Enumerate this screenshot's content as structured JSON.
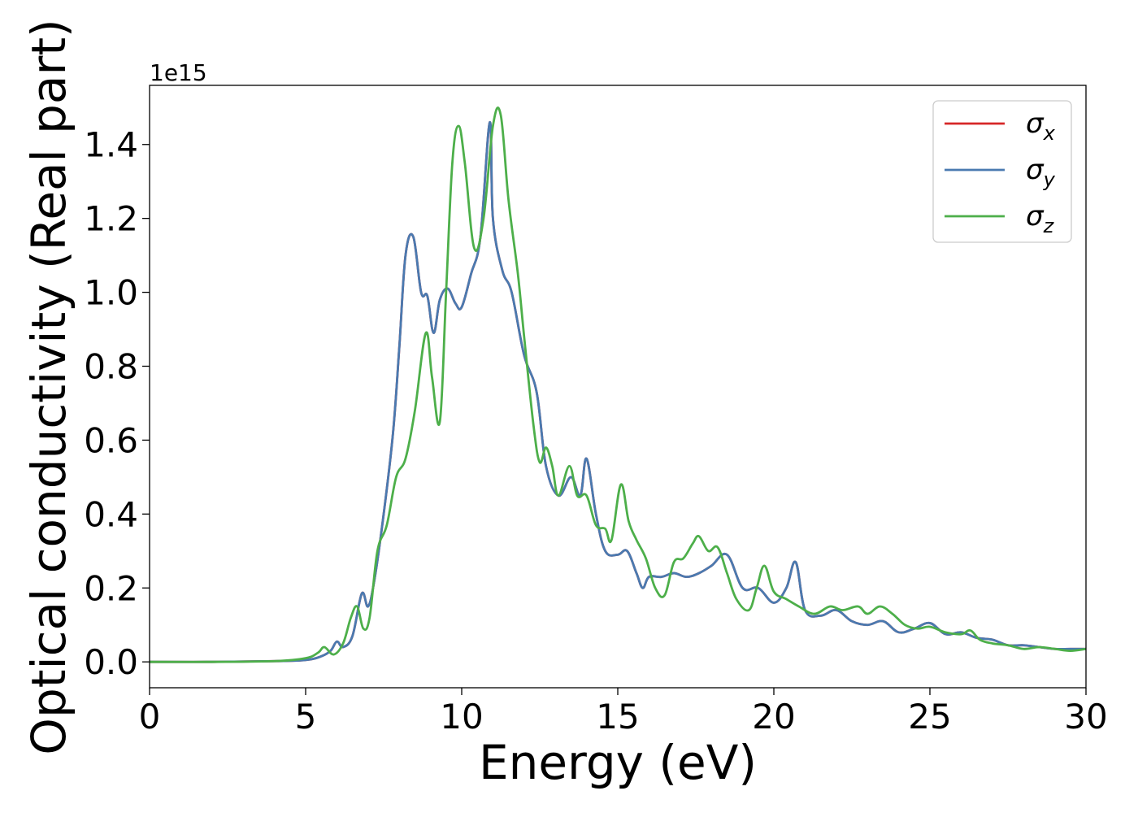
{
  "chart_data": {
    "type": "line",
    "xlabel": "Energy (eV)",
    "ylabel": "Optical conductivity (Real part)",
    "y_offset_label": "1e15",
    "xlim": [
      0,
      30
    ],
    "ylim": [
      -0.07,
      1.56
    ],
    "x_ticks": [
      0,
      5,
      10,
      15,
      20,
      25,
      30
    ],
    "x_tick_labels": [
      "0",
      "5",
      "10",
      "15",
      "20",
      "25",
      "30"
    ],
    "y_ticks": [
      0.0,
      0.2,
      0.4,
      0.6,
      0.8,
      1.0,
      1.2,
      1.4
    ],
    "y_tick_labels": [
      "0.0",
      "0.2",
      "0.4",
      "0.6",
      "0.8",
      "1.0",
      "1.2",
      "1.4"
    ],
    "grid": false,
    "legend_position": "top-right",
    "series": [
      {
        "name": "σx",
        "legend_symbol": "σ",
        "legend_sub": "x",
        "color": "#d62728",
        "x": [
          0,
          2,
          4,
          5,
          5.5,
          5.8,
          6.0,
          6.2,
          6.5,
          6.8,
          7.0,
          7.2,
          7.5,
          7.8,
          8.0,
          8.2,
          8.45,
          8.7,
          8.9,
          9.1,
          9.3,
          9.55,
          9.8,
          10.0,
          10.3,
          10.6,
          10.9,
          11.0,
          11.3,
          11.6,
          12.0,
          12.4,
          12.7,
          13.1,
          13.5,
          13.8,
          14.0,
          14.3,
          14.6,
          15.0,
          15.3,
          15.6,
          15.8,
          16.0,
          16.4,
          16.8,
          17.2,
          17.6,
          18.0,
          18.5,
          19.0,
          19.5,
          20.0,
          20.4,
          20.7,
          21.0,
          21.5,
          22.0,
          22.5,
          23.0,
          23.5,
          24.0,
          24.5,
          25.0,
          25.5,
          26.0,
          26.5,
          27.0,
          27.5,
          28.0,
          28.5,
          29.0,
          29.5,
          30.0
        ],
        "y": [
          0,
          0,
          0.002,
          0.005,
          0.015,
          0.03,
          0.055,
          0.04,
          0.07,
          0.185,
          0.15,
          0.22,
          0.4,
          0.62,
          0.85,
          1.1,
          1.15,
          1.0,
          0.99,
          0.89,
          0.98,
          1.01,
          0.97,
          0.96,
          1.05,
          1.15,
          1.46,
          1.2,
          1.06,
          1.0,
          0.83,
          0.73,
          0.53,
          0.45,
          0.5,
          0.45,
          0.55,
          0.4,
          0.3,
          0.29,
          0.3,
          0.24,
          0.2,
          0.23,
          0.23,
          0.24,
          0.23,
          0.24,
          0.26,
          0.29,
          0.2,
          0.2,
          0.16,
          0.2,
          0.27,
          0.14,
          0.125,
          0.14,
          0.11,
          0.1,
          0.11,
          0.08,
          0.09,
          0.105,
          0.075,
          0.08,
          0.065,
          0.06,
          0.045,
          0.045,
          0.04,
          0.035,
          0.035,
          0.035
        ]
      },
      {
        "name": "σy",
        "legend_symbol": "σ",
        "legend_sub": "y",
        "color": "#4a7ab0",
        "x": [
          0,
          2,
          4,
          5,
          5.5,
          5.8,
          6.0,
          6.2,
          6.5,
          6.8,
          7.0,
          7.2,
          7.5,
          7.8,
          8.0,
          8.2,
          8.45,
          8.7,
          8.9,
          9.1,
          9.3,
          9.55,
          9.8,
          10.0,
          10.3,
          10.6,
          10.9,
          11.0,
          11.3,
          11.6,
          12.0,
          12.4,
          12.7,
          13.1,
          13.5,
          13.8,
          14.0,
          14.3,
          14.6,
          15.0,
          15.3,
          15.6,
          15.8,
          16.0,
          16.4,
          16.8,
          17.2,
          17.6,
          18.0,
          18.5,
          19.0,
          19.5,
          20.0,
          20.4,
          20.7,
          21.0,
          21.5,
          22.0,
          22.5,
          23.0,
          23.5,
          24.0,
          24.5,
          25.0,
          25.5,
          26.0,
          26.5,
          27.0,
          27.5,
          28.0,
          28.5,
          29.0,
          29.5,
          30.0
        ],
        "y": [
          0,
          0,
          0.002,
          0.005,
          0.015,
          0.03,
          0.055,
          0.04,
          0.07,
          0.185,
          0.15,
          0.22,
          0.4,
          0.62,
          0.85,
          1.1,
          1.15,
          1.0,
          0.99,
          0.89,
          0.98,
          1.01,
          0.97,
          0.96,
          1.05,
          1.15,
          1.46,
          1.2,
          1.06,
          1.0,
          0.83,
          0.73,
          0.53,
          0.45,
          0.5,
          0.45,
          0.55,
          0.4,
          0.3,
          0.29,
          0.3,
          0.24,
          0.2,
          0.23,
          0.23,
          0.24,
          0.23,
          0.24,
          0.26,
          0.29,
          0.2,
          0.2,
          0.16,
          0.2,
          0.27,
          0.14,
          0.125,
          0.14,
          0.11,
          0.1,
          0.11,
          0.08,
          0.09,
          0.105,
          0.075,
          0.08,
          0.065,
          0.06,
          0.045,
          0.045,
          0.04,
          0.035,
          0.035,
          0.035
        ]
      },
      {
        "name": "σz",
        "legend_symbol": "σ",
        "legend_sub": "z",
        "color": "#4daf4a",
        "x": [
          0,
          2,
          4,
          5,
          5.4,
          5.6,
          5.9,
          6.2,
          6.45,
          6.65,
          6.85,
          7.05,
          7.3,
          7.6,
          7.9,
          8.2,
          8.5,
          8.85,
          9.05,
          9.3,
          9.5,
          9.7,
          9.9,
          10.1,
          10.4,
          10.7,
          11.0,
          11.25,
          11.5,
          11.8,
          12.0,
          12.3,
          12.5,
          12.7,
          12.9,
          13.1,
          13.45,
          13.7,
          14.0,
          14.3,
          14.6,
          14.8,
          15.1,
          15.35,
          15.6,
          15.9,
          16.2,
          16.5,
          16.8,
          17.1,
          17.4,
          17.6,
          17.9,
          18.2,
          18.5,
          18.8,
          19.2,
          19.45,
          19.7,
          20.0,
          20.4,
          20.8,
          21.3,
          21.8,
          22.2,
          22.7,
          23.0,
          23.4,
          23.8,
          24.2,
          24.6,
          25.0,
          25.5,
          26.0,
          26.3,
          26.6,
          27.0,
          27.5,
          28.0,
          28.5,
          29.0,
          29.5,
          30.0
        ],
        "y": [
          0,
          0,
          0.002,
          0.01,
          0.025,
          0.04,
          0.02,
          0.05,
          0.12,
          0.15,
          0.09,
          0.12,
          0.3,
          0.37,
          0.5,
          0.55,
          0.68,
          0.89,
          0.77,
          0.65,
          1.0,
          1.35,
          1.45,
          1.35,
          1.12,
          1.2,
          1.45,
          1.48,
          1.25,
          1.05,
          0.88,
          0.64,
          0.54,
          0.58,
          0.53,
          0.45,
          0.53,
          0.45,
          0.45,
          0.37,
          0.36,
          0.33,
          0.48,
          0.38,
          0.33,
          0.28,
          0.2,
          0.18,
          0.27,
          0.28,
          0.32,
          0.34,
          0.3,
          0.31,
          0.24,
          0.17,
          0.14,
          0.2,
          0.26,
          0.19,
          0.17,
          0.15,
          0.13,
          0.15,
          0.14,
          0.15,
          0.13,
          0.15,
          0.13,
          0.1,
          0.09,
          0.095,
          0.08,
          0.075,
          0.085,
          0.06,
          0.05,
          0.045,
          0.035,
          0.04,
          0.035,
          0.03,
          0.035
        ]
      }
    ]
  }
}
